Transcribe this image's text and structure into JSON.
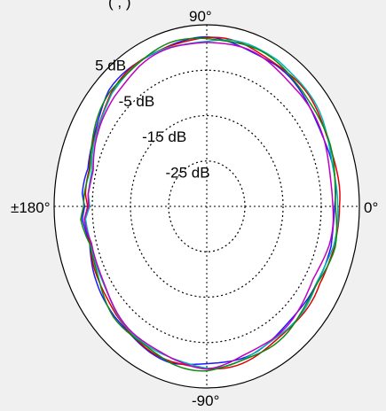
{
  "chart_data": {
    "type": "polar",
    "title_fragment": "(      ,       )",
    "angle_labels": {
      "top": "90°",
      "bottom": "-90°",
      "left": "±180°",
      "right": "0°"
    },
    "radial_unit": "dB",
    "radial_range": [
      -35,
      5
    ],
    "rings": [
      {
        "value": 5,
        "label": "5 dB"
      },
      {
        "value": -5,
        "label": "-5 dB"
      },
      {
        "value": -15,
        "label": "-15 dB"
      },
      {
        "value": -25,
        "label": "-25 dB"
      }
    ],
    "series": [
      {
        "color": "#1a1aff",
        "angles_deg": [
          0,
          15,
          30,
          45,
          60,
          75,
          90,
          105,
          120,
          135,
          150,
          165,
          175,
          180,
          185,
          195,
          210,
          225,
          240,
          255,
          270,
          285,
          300,
          315,
          330,
          345
        ],
        "values": [
          -1.5,
          -1,
          -0.5,
          0,
          1,
          1.5,
          2,
          2,
          1.5,
          1,
          -1,
          -3,
          -2.5,
          -3,
          -2,
          -3,
          -2,
          -0.5,
          0,
          0.5,
          0,
          -0.5,
          -1,
          -1.5,
          -2,
          -1
        ]
      },
      {
        "color": "#e00000",
        "angles_deg": [
          0,
          15,
          30,
          45,
          60,
          75,
          90,
          105,
          120,
          135,
          150,
          165,
          175,
          180,
          185,
          195,
          210,
          225,
          240,
          255,
          270,
          285,
          300,
          315,
          330,
          345
        ],
        "values": [
          -0.5,
          0,
          0.5,
          1,
          1.5,
          2,
          2,
          2,
          1.2,
          0.5,
          -1.5,
          -3.5,
          -3,
          -3.5,
          -2.5,
          -3.5,
          -2.5,
          -1,
          -0.5,
          0.5,
          1,
          0.5,
          0,
          -0.5,
          -1,
          0
        ]
      },
      {
        "color": "#00b5b5",
        "angles_deg": [
          0,
          15,
          30,
          45,
          60,
          75,
          90,
          105,
          120,
          135,
          150,
          165,
          175,
          180,
          185,
          195,
          210,
          225,
          240,
          255,
          270,
          285,
          300,
          315,
          330,
          345
        ],
        "values": [
          -1,
          -0.5,
          0.5,
          1.5,
          2.5,
          2,
          1.5,
          1.5,
          1,
          0.5,
          -2,
          -4,
          -3.5,
          -4,
          -3,
          -4,
          -3,
          -1.5,
          -1,
          0,
          0.5,
          0,
          -0.5,
          -1,
          -1.5,
          -0.5
        ]
      },
      {
        "color": "#c000c0",
        "angles_deg": [
          0,
          15,
          30,
          45,
          60,
          75,
          90,
          105,
          120,
          135,
          150,
          165,
          175,
          180,
          185,
          195,
          210,
          225,
          240,
          255,
          270,
          285,
          300,
          315,
          330,
          345
        ],
        "values": [
          -2,
          -1.5,
          -1,
          0,
          0.5,
          1,
          1.5,
          1,
          0.5,
          -0.5,
          -2.5,
          -4,
          -3.5,
          -4,
          -3,
          -4,
          -3,
          -2,
          -1,
          0,
          0.5,
          -0.5,
          -1,
          -2,
          -2.5,
          -2
        ]
      },
      {
        "color": "#118811",
        "angles_deg": [
          0,
          15,
          30,
          45,
          60,
          75,
          90,
          105,
          120,
          135,
          150,
          165,
          175,
          180,
          185,
          195,
          210,
          225,
          240,
          255,
          270,
          285,
          300,
          315,
          330,
          345
        ],
        "values": [
          -1,
          -0.5,
          0,
          1,
          1.5,
          2,
          2.2,
          2,
          1.5,
          0.8,
          -1.2,
          -3,
          -2.8,
          -3,
          -2.2,
          -3.2,
          -2.2,
          -0.8,
          -0.2,
          0.8,
          1,
          0.5,
          0,
          -0.8,
          -1.2,
          -0.5
        ]
      }
    ],
    "grid": true
  }
}
